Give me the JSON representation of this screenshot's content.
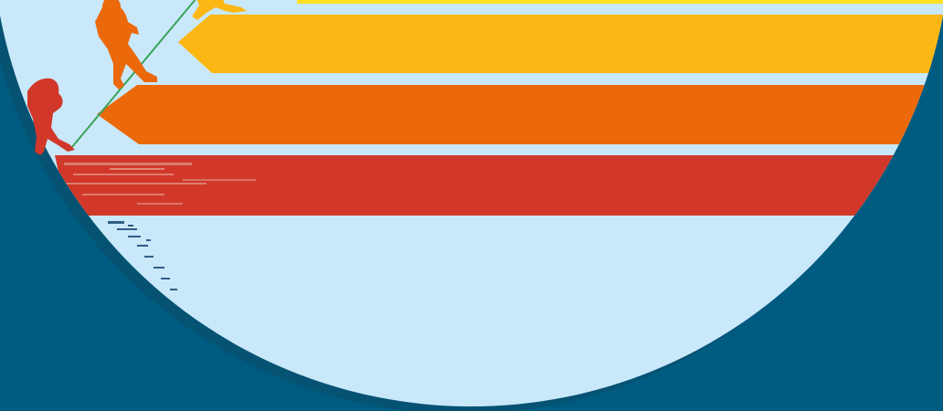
{
  "colors": {
    "background": "#005b80",
    "disc": "#c9e8fa",
    "disc_shadow": "#0a4a66",
    "stripe_yellow": "#fde021",
    "stripe_amber": "#fdb714",
    "stripe_orange": "#eb690b",
    "stripe_red": "#d13829",
    "rope": "#3aa35a",
    "figure_amber": "#fdb714",
    "figure_orange": "#eb690b",
    "figure_red": "#d13829",
    "grunge": "#2f5d86"
  },
  "icons": {
    "figures": [
      "standing-human-icon",
      "crouching-human-icon",
      "ape-icon"
    ],
    "rope": "rope-icon"
  }
}
